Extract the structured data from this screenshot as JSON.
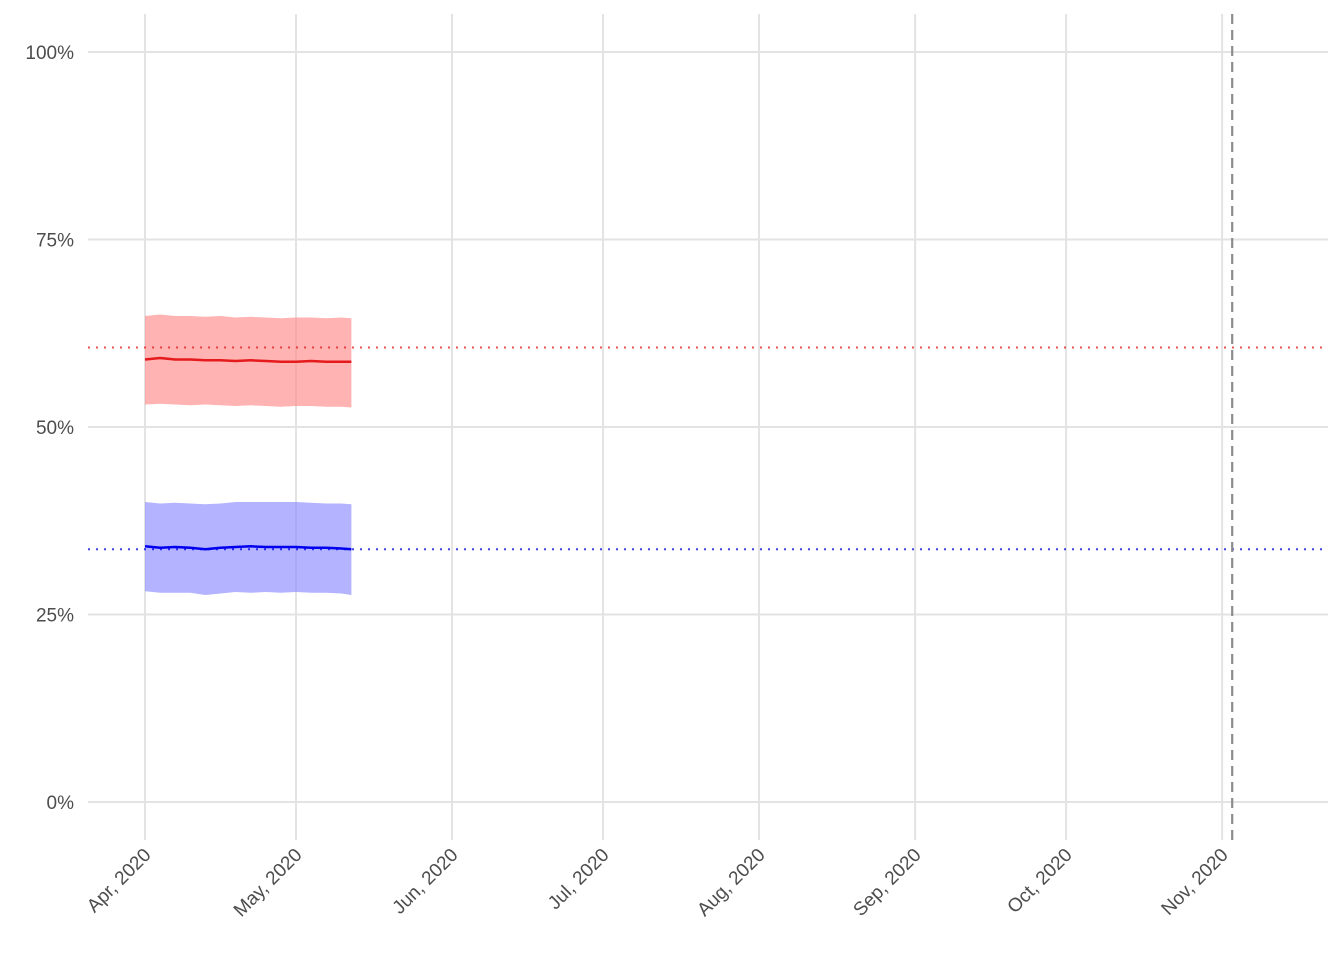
{
  "chart_data": {
    "type": "line",
    "title": "",
    "xlabel": "",
    "ylabel": "",
    "x_axis": {
      "type": "date",
      "range": [
        "2020-03-22",
        "2020-11-22"
      ],
      "ticks": [
        {
          "date": "2020-04-01",
          "label": "Apr, 2020"
        },
        {
          "date": "2020-05-01",
          "label": "May, 2020"
        },
        {
          "date": "2020-06-01",
          "label": "Jun, 2020"
        },
        {
          "date": "2020-07-01",
          "label": "Jul, 2020"
        },
        {
          "date": "2020-08-01",
          "label": "Aug, 2020"
        },
        {
          "date": "2020-09-01",
          "label": "Sep, 2020"
        },
        {
          "date": "2020-10-01",
          "label": "Oct, 2020"
        },
        {
          "date": "2020-11-01",
          "label": "Nov, 2020"
        }
      ]
    },
    "y_axis": {
      "range": [
        -0.05,
        1.05
      ],
      "ticks": [
        {
          "value": 0,
          "label": "0%"
        },
        {
          "value": 0.25,
          "label": "25%"
        },
        {
          "value": 0.5,
          "label": "50%"
        },
        {
          "value": 0.75,
          "label": "75%"
        },
        {
          "value": 1.0,
          "label": "100%"
        }
      ]
    },
    "grid": true,
    "legend": "none",
    "series": [
      {
        "color": "#e41a1c",
        "band_color": "#ff8a8a",
        "x": [
          "2020-04-01",
          "2020-04-04",
          "2020-04-07",
          "2020-04-10",
          "2020-04-13",
          "2020-04-16",
          "2020-04-19",
          "2020-04-22",
          "2020-04-25",
          "2020-04-28",
          "2020-05-01",
          "2020-05-04",
          "2020-05-07",
          "2020-05-10",
          "2020-05-12"
        ],
        "values": [
          0.59,
          0.592,
          0.59,
          0.59,
          0.589,
          0.589,
          0.588,
          0.589,
          0.588,
          0.587,
          0.587,
          0.588,
          0.587,
          0.587,
          0.587
        ],
        "lower": [
          0.53,
          0.531,
          0.53,
          0.529,
          0.53,
          0.529,
          0.528,
          0.529,
          0.528,
          0.527,
          0.528,
          0.528,
          0.527,
          0.527,
          0.526
        ],
        "upper": [
          0.648,
          0.65,
          0.648,
          0.648,
          0.647,
          0.648,
          0.646,
          0.647,
          0.646,
          0.645,
          0.646,
          0.646,
          0.645,
          0.646,
          0.645
        ],
        "reference": 0.606
      },
      {
        "color": "#0000ee",
        "band_color": "#8a8aff",
        "x": [
          "2020-04-01",
          "2020-04-04",
          "2020-04-07",
          "2020-04-10",
          "2020-04-13",
          "2020-04-16",
          "2020-04-19",
          "2020-04-22",
          "2020-04-25",
          "2020-04-28",
          "2020-05-01",
          "2020-05-04",
          "2020-05-07",
          "2020-05-10",
          "2020-05-12"
        ],
        "values": [
          0.341,
          0.339,
          0.34,
          0.339,
          0.337,
          0.339,
          0.34,
          0.341,
          0.34,
          0.34,
          0.34,
          0.339,
          0.339,
          0.338,
          0.337
        ],
        "lower": [
          0.281,
          0.279,
          0.279,
          0.279,
          0.276,
          0.278,
          0.28,
          0.279,
          0.28,
          0.279,
          0.28,
          0.279,
          0.279,
          0.278,
          0.276
        ],
        "upper": [
          0.4,
          0.398,
          0.399,
          0.398,
          0.397,
          0.398,
          0.4,
          0.4,
          0.4,
          0.4,
          0.4,
          0.399,
          0.398,
          0.398,
          0.397
        ],
        "reference": 0.337
      }
    ],
    "vertical_marker": {
      "date": "2020-11-03",
      "style": "dashed",
      "color": "#8c8c8c"
    }
  }
}
